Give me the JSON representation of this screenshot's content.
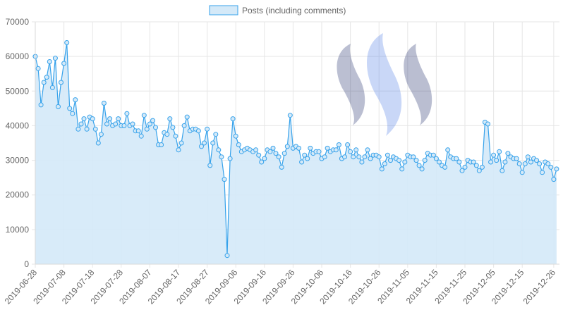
{
  "chart_data": {
    "type": "area",
    "title": "",
    "xlabel": "",
    "ylabel": "",
    "ylim": [
      0,
      70000
    ],
    "y_ticks": [
      "0",
      "10000",
      "20000",
      "30000",
      "40000",
      "50000",
      "60000",
      "70000"
    ],
    "x_range": [
      "2019-06-28",
      "2019-12-28"
    ],
    "x_ticks": [
      "2019-06-28",
      "2019-07-08",
      "2019-07-18",
      "2019-07-28",
      "2019-08-07",
      "2019-08-17",
      "2019-08-27",
      "2019-09-06",
      "2019-09-16",
      "2019-09-26",
      "2019-10-06",
      "2019-10-16",
      "2019-10-26",
      "2019-11-05",
      "2019-11-15",
      "2019-11-25",
      "2019-12-05",
      "2019-12-15",
      "2019-12-26"
    ],
    "grid": true,
    "legend_position": "top",
    "series": [
      {
        "name": "Posts (including comments)",
        "color": "#36a2eb",
        "fill": "#d4e9f8",
        "start": "2019-06-28",
        "values": [
          60000,
          56500,
          46000,
          52500,
          54000,
          58500,
          51000,
          59500,
          45500,
          52500,
          58000,
          64000,
          45000,
          43500,
          47500,
          39000,
          40500,
          42000,
          39000,
          42500,
          42000,
          39000,
          35000,
          37500,
          46500,
          40500,
          42000,
          40000,
          40500,
          42000,
          40000,
          40000,
          43500,
          40000,
          40500,
          38500,
          38500,
          37000,
          43000,
          39000,
          40500,
          41500,
          39500,
          34500,
          34500,
          38000,
          37500,
          42000,
          39500,
          37000,
          33000,
          35000,
          40000,
          42500,
          38500,
          39000,
          39000,
          38500,
          34000,
          35000,
          39000,
          28500,
          35000,
          37500,
          33000,
          31000,
          24500,
          2500,
          30500,
          42000,
          37000,
          34500,
          32500,
          33000,
          33500,
          33000,
          32500,
          33000,
          31500,
          29500,
          30500,
          33000,
          32500,
          33500,
          32000,
          31000,
          28000,
          32000,
          34000,
          43000,
          33500,
          34000,
          33500,
          29500,
          31500,
          30500,
          33500,
          32000,
          32500,
          32500,
          30500,
          31000,
          33500,
          32500,
          33000,
          33000,
          34500,
          30500,
          31000,
          34500,
          32500,
          31000,
          33000,
          31000,
          29500,
          31000,
          33000,
          30500,
          31500,
          31500,
          31000,
          27500,
          29000,
          31500,
          30000,
          31000,
          30500,
          30000,
          27500,
          29500,
          31500,
          31000,
          31000,
          30000,
          28500,
          27500,
          30000,
          32000,
          31500,
          31500,
          30500,
          29500,
          28500,
          28000,
          33000,
          31000,
          30500,
          30500,
          29500,
          27000,
          28000,
          30000,
          29500,
          29500,
          28500,
          27000,
          28000,
          41000,
          40500,
          29500,
          31500,
          30000,
          32500,
          27000,
          29500,
          32000,
          31000,
          30500,
          30500,
          29000,
          26500,
          29000,
          31000,
          29500,
          30500,
          30000,
          29000,
          26500,
          29500,
          29000,
          28000,
          24500,
          27500
        ]
      }
    ]
  }
}
